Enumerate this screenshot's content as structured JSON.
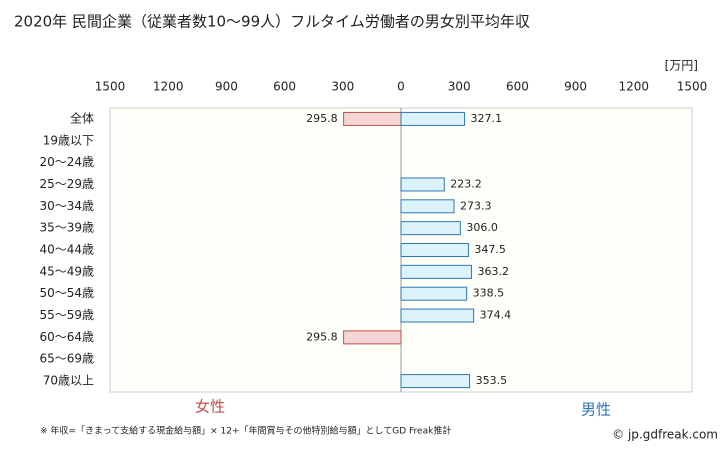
{
  "chart_data": {
    "type": "butterfly-bar",
    "title": "2020年 民間企業（従業者数10〜99人）フルタイム労働者の男女別平均年収",
    "unit_label": "[万円]",
    "categories": [
      "全体",
      "19歳以下",
      "20〜24歳",
      "25〜29歳",
      "30〜34歳",
      "35〜39歳",
      "40〜44歳",
      "45〜49歳",
      "50〜54歳",
      "55〜59歳",
      "60〜64歳",
      "65〜69歳",
      "70歳以上"
    ],
    "series": [
      {
        "name": "女性",
        "side": "left",
        "color": "#f5d5d5",
        "stroke": "#c0504d",
        "values": [
          295.8,
          null,
          null,
          null,
          null,
          null,
          null,
          null,
          null,
          null,
          295.8,
          null,
          null
        ],
        "value_labels": [
          "295.8",
          null,
          null,
          null,
          null,
          null,
          null,
          null,
          null,
          null,
          "295.8",
          null,
          null
        ]
      },
      {
        "name": "男性",
        "side": "right",
        "color": "#ddf3fb",
        "stroke": "#2e75b6",
        "values": [
          327.1,
          null,
          null,
          223.2,
          273.3,
          306.0,
          347.5,
          363.2,
          338.5,
          374.4,
          null,
          null,
          353.5
        ],
        "value_labels": [
          "327.1",
          null,
          null,
          "223.2",
          "273.3",
          "306.0",
          "347.5",
          "363.2",
          "338.5",
          "374.4",
          null,
          null,
          "353.5"
        ]
      }
    ],
    "xlim": [
      -1500,
      1500
    ],
    "xticks": [
      {
        "value": -1500,
        "label": "1500"
      },
      {
        "value": -1200,
        "label": "1200"
      },
      {
        "value": -900,
        "label": "900"
      },
      {
        "value": -600,
        "label": "600"
      },
      {
        "value": -300,
        "label": "300"
      },
      0,
      300,
      600,
      900,
      1200,
      1500
    ],
    "footnote": "※ 年収=「きまって支給する現金給与額」× 12+「年間賞与その他特別給与額」としてGD Freak推計",
    "credit": "© jp.gdfreak.com"
  }
}
